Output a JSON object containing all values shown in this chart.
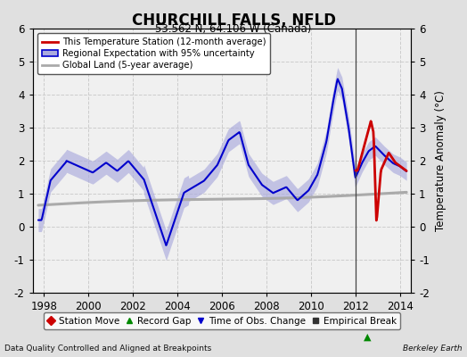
{
  "title": "CHURCHILL FALLS, NFLD",
  "subtitle": "53.562 N, 64.106 W (Canada)",
  "ylabel": "Temperature Anomaly (°C)",
  "xlabel_bottom": "Data Quality Controlled and Aligned at Breakpoints",
  "xlabel_right": "Berkeley Earth",
  "ylim": [
    -2,
    6
  ],
  "xlim": [
    1997.5,
    2014.5
  ],
  "xticks": [
    1998,
    2000,
    2002,
    2004,
    2006,
    2008,
    2010,
    2012,
    2014
  ],
  "yticks": [
    -2,
    -1,
    0,
    1,
    2,
    3,
    4,
    5,
    6
  ],
  "bg_color": "#e0e0e0",
  "plot_bg_color": "#f0f0f0",
  "grid_color": "#cccccc",
  "vertical_line_x": 2012.0,
  "blue_line_color": "#0000cc",
  "blue_fill_color": "#aaaadd",
  "red_line_color": "#cc0000",
  "gray_line_color": "#aaaaaa",
  "legend_items": [
    {
      "label": "This Temperature Station (12-month average)",
      "color": "#cc0000",
      "lw": 2
    },
    {
      "label": "Regional Expectation with 95% uncertainty",
      "color": "#0000cc",
      "fill": "#aaaadd"
    },
    {
      "label": "Global Land (5-year average)",
      "color": "#aaaaaa",
      "lw": 2
    }
  ],
  "bottom_legend": [
    {
      "marker": "D",
      "color": "#cc0000",
      "label": "Station Move"
    },
    {
      "marker": "^",
      "color": "#008800",
      "label": "Record Gap"
    },
    {
      "marker": "v",
      "color": "#0000cc",
      "label": "Time of Obs. Change"
    },
    {
      "marker": "s",
      "color": "#333333",
      "label": "Empirical Break"
    }
  ],
  "record_gap_marker_x": 2012.0,
  "record_gap_marker_y": -1.35
}
